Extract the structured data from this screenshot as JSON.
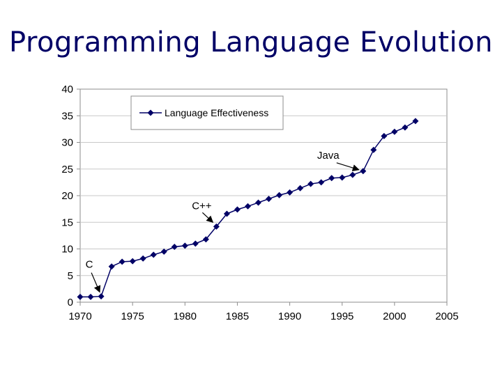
{
  "slide": {
    "title": "Programming Language Evolution"
  },
  "chart_data": {
    "type": "line",
    "title": "",
    "xlabel": "",
    "ylabel": "",
    "xlim": [
      1970,
      2005
    ],
    "ylim": [
      0,
      40
    ],
    "x_ticks": [
      1970,
      1975,
      1980,
      1985,
      1990,
      1995,
      2000,
      2005
    ],
    "y_ticks": [
      0,
      5,
      10,
      15,
      20,
      25,
      30,
      35,
      40
    ],
    "grid": "horizontal",
    "legend_position": "top-left",
    "series": [
      {
        "name": "Language Effectiveness",
        "color": "#000066",
        "marker": "diamond",
        "x": [
          1970,
          1971,
          1972,
          1973,
          1974,
          1975,
          1976,
          1977,
          1978,
          1979,
          1980,
          1981,
          1982,
          1983,
          1984,
          1985,
          1986,
          1987,
          1988,
          1989,
          1990,
          1991,
          1992,
          1993,
          1994,
          1995,
          1996,
          1997,
          1998,
          1999,
          2000,
          2001,
          2002
        ],
        "values": [
          1,
          1,
          1.1,
          6.7,
          7.6,
          7.7,
          8.2,
          8.9,
          9.5,
          10.4,
          10.6,
          11,
          11.8,
          14.2,
          16.6,
          17.4,
          18,
          18.7,
          19.4,
          20.1,
          20.6,
          21.4,
          22.2,
          22.5,
          23.3,
          23.4,
          23.9,
          24.6,
          28.6,
          31.2,
          32,
          32.8,
          34
        ]
      }
    ],
    "annotations": [
      {
        "text": "C",
        "x": 1972
      },
      {
        "text": "C++",
        "x": 1983
      },
      {
        "text": "Java",
        "x": 1997
      }
    ]
  }
}
